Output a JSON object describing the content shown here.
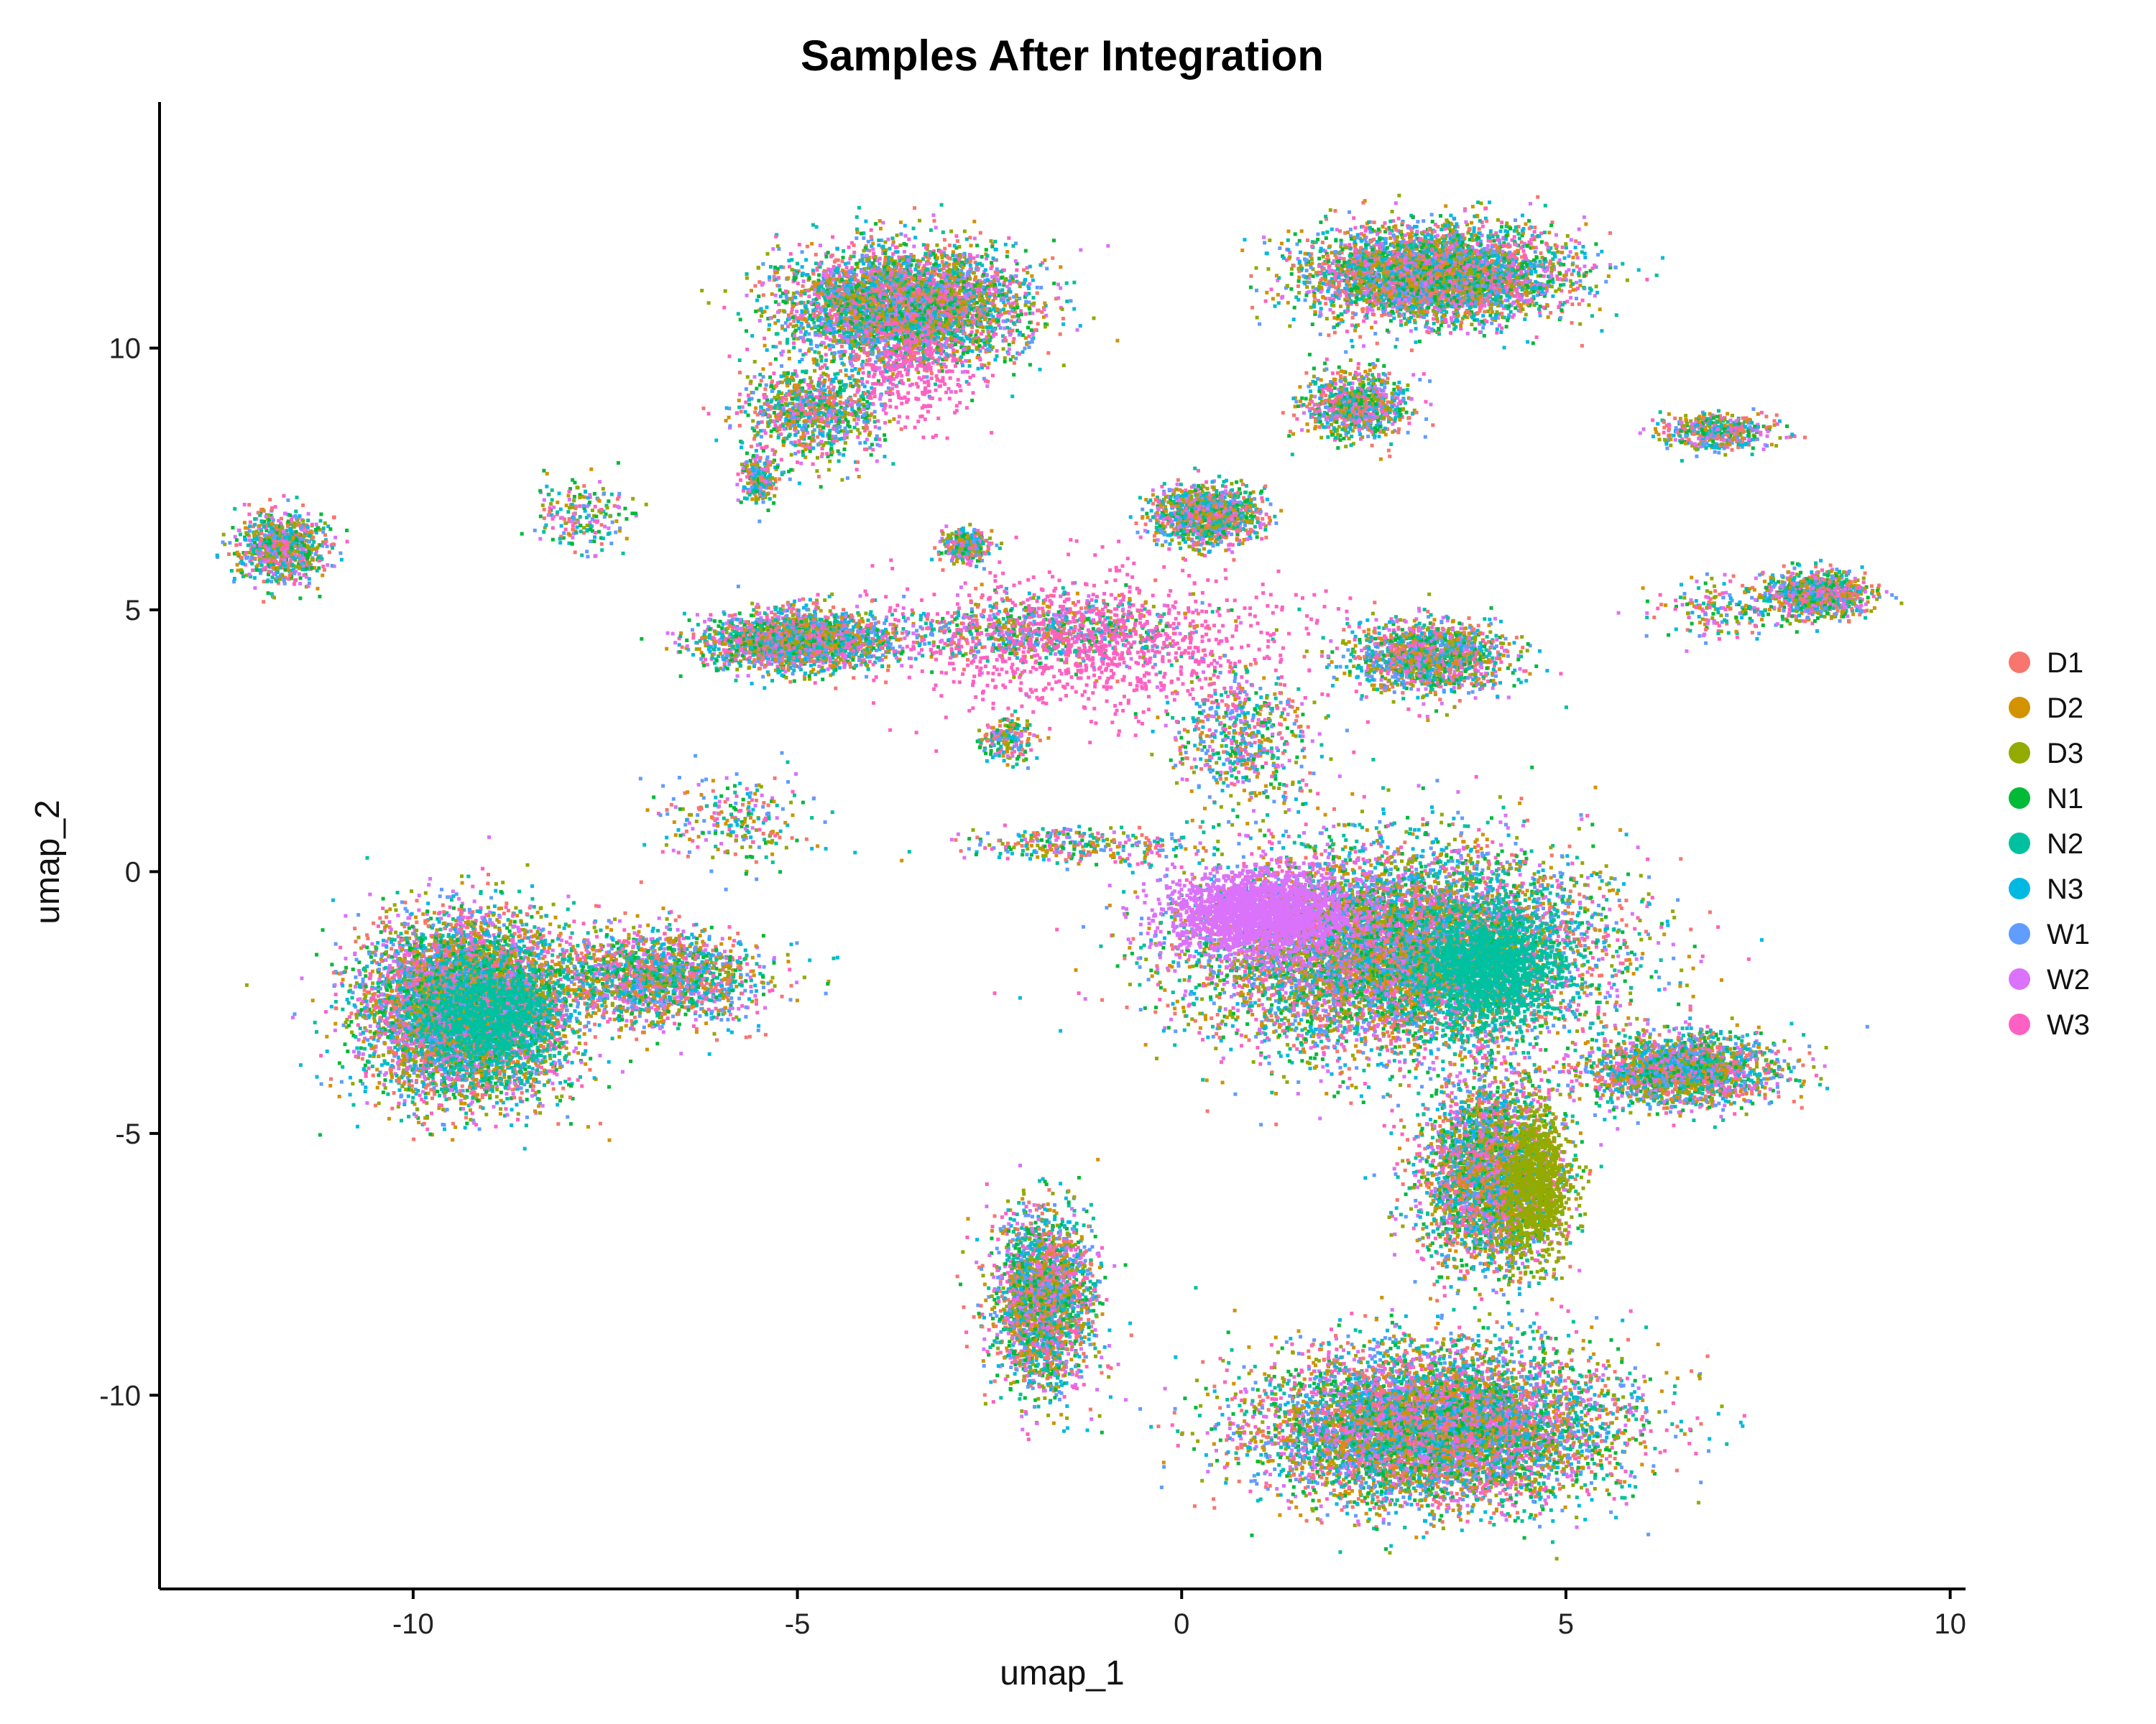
{
  "chart_data": {
    "type": "scatter",
    "title": "Samples After Integration",
    "xlabel": "umap_1",
    "ylabel": "umap_2",
    "xlim": [
      -13.3,
      10.2
    ],
    "ylim": [
      -13.7,
      14.7
    ],
    "xticks": [
      -10,
      -5,
      0,
      5,
      10
    ],
    "xtick_labels": [
      "-10",
      "-5",
      "0",
      "5",
      "10"
    ],
    "yticks": [
      -10,
      -5,
      0,
      5,
      10
    ],
    "ytick_labels": [
      "-10",
      "-5",
      "0",
      "5",
      "10"
    ],
    "grid": false,
    "legend_position": "right",
    "series": [
      {
        "name": "D1",
        "color": "#F8766D"
      },
      {
        "name": "D2",
        "color": "#D39200"
      },
      {
        "name": "D3",
        "color": "#93AA00"
      },
      {
        "name": "N1",
        "color": "#00BA38"
      },
      {
        "name": "N2",
        "color": "#00C19F"
      },
      {
        "name": "N3",
        "color": "#00B9E3"
      },
      {
        "name": "W1",
        "color": "#619CFF"
      },
      {
        "name": "W2",
        "color": "#DB72FB"
      },
      {
        "name": "W3",
        "color": "#FF61C3"
      }
    ],
    "clusters": [
      {
        "id": "large-center",
        "x": 2.8,
        "y": -1.5,
        "sx": 2.3,
        "sy": 1.7,
        "n": 9000
      },
      {
        "id": "lower-stalk",
        "x": 4.0,
        "y": -5.8,
        "sx": 0.8,
        "sy": 1.6,
        "n": 3500
      },
      {
        "id": "bottom-blob",
        "x": 3.3,
        "y": -10.6,
        "sx": 2.0,
        "sy": 1.3,
        "n": 8000
      },
      {
        "id": "lower-left-mass",
        "x": -1.8,
        "y": -8.2,
        "sx": 0.6,
        "sy": 1.5,
        "n": 2500
      },
      {
        "id": "right-arm",
        "x": 6.5,
        "y": -3.8,
        "sx": 1.1,
        "sy": 0.6,
        "n": 2200
      },
      {
        "id": "left-blob",
        "x": -9.3,
        "y": -2.6,
        "sx": 1.2,
        "sy": 1.5,
        "n": 7000
      },
      {
        "id": "left-tail",
        "x": -6.8,
        "y": -2.0,
        "sx": 1.2,
        "sy": 0.8,
        "n": 1800
      },
      {
        "id": "top-center",
        "x": -3.6,
        "y": 10.8,
        "sx": 1.4,
        "sy": 1.0,
        "n": 4500
      },
      {
        "id": "top-center-lower",
        "x": -4.8,
        "y": 8.8,
        "sx": 0.8,
        "sy": 0.8,
        "n": 1000
      },
      {
        "id": "top-right",
        "x": 3.3,
        "y": 11.4,
        "sx": 1.5,
        "sy": 0.8,
        "n": 4500
      },
      {
        "id": "top-right-lower",
        "x": 2.3,
        "y": 8.9,
        "sx": 0.6,
        "sy": 0.6,
        "n": 900
      },
      {
        "id": "top-right-arm",
        "x": 7.0,
        "y": 8.4,
        "sx": 0.7,
        "sy": 0.3,
        "n": 500
      },
      {
        "id": "far-left",
        "x": -11.7,
        "y": 6.2,
        "sx": 0.5,
        "sy": 0.6,
        "n": 900
      },
      {
        "id": "far-left-arm",
        "x": -7.8,
        "y": 6.8,
        "sx": 0.6,
        "sy": 0.6,
        "n": 200
      },
      {
        "id": "mid-left",
        "x": -5.0,
        "y": 4.4,
        "sx": 1.1,
        "sy": 0.5,
        "n": 2200
      },
      {
        "id": "center-small",
        "x": 0.3,
        "y": 6.8,
        "sx": 0.6,
        "sy": 0.5,
        "n": 1300
      },
      {
        "id": "center-right",
        "x": 3.2,
        "y": 4.1,
        "sx": 0.9,
        "sy": 0.6,
        "n": 1500
      },
      {
        "id": "far-right",
        "x": 8.3,
        "y": 5.3,
        "sx": 0.6,
        "sy": 0.4,
        "n": 900
      },
      {
        "id": "far-right-arm",
        "x": 7.0,
        "y": 5.0,
        "sx": 0.8,
        "sy": 0.5,
        "n": 200
      },
      {
        "id": "small-center-left",
        "x": -2.8,
        "y": 6.2,
        "sx": 0.3,
        "sy": 0.3,
        "n": 300
      },
      {
        "id": "upper-left-small",
        "x": -5.5,
        "y": 7.5,
        "sx": 0.2,
        "sy": 0.4,
        "n": 250
      },
      {
        "id": "mid-strand",
        "x": -1.8,
        "y": 4.6,
        "sx": 1.8,
        "sy": 0.6,
        "n": 900
      },
      {
        "id": "lower-strand",
        "x": -1.3,
        "y": 0.5,
        "sx": 1.4,
        "sy": 0.3,
        "n": 300
      },
      {
        "id": "center-stem",
        "x": 0.8,
        "y": 2.5,
        "sx": 0.8,
        "sy": 1.2,
        "n": 600
      },
      {
        "id": "small-lower-center",
        "x": -2.3,
        "y": 2.5,
        "sx": 0.3,
        "sy": 0.4,
        "n": 200
      },
      {
        "id": "left-faint-strands",
        "x": -5.8,
        "y": 1.0,
        "sx": 0.9,
        "sy": 0.8,
        "n": 250
      },
      {
        "id": "w3-pink-spread",
        "x": -1.0,
        "y": 4.3,
        "sx": 2.4,
        "sy": 1.3,
        "n": 900,
        "series": "W3"
      },
      {
        "id": "w2-center-left",
        "x": 1.0,
        "y": -0.8,
        "sx": 1.1,
        "sy": 0.7,
        "n": 2000,
        "series": "W2"
      },
      {
        "id": "n2-center-right",
        "x": 4.0,
        "y": -1.8,
        "sx": 0.8,
        "sy": 1.0,
        "n": 1600,
        "series": "N2"
      },
      {
        "id": "d3-stalk-right",
        "x": 4.6,
        "y": -6.0,
        "sx": 0.4,
        "sy": 1.2,
        "n": 900,
        "series": "D3"
      },
      {
        "id": "w3-top-center",
        "x": -3.5,
        "y": 9.5,
        "sx": 0.6,
        "sy": 0.9,
        "n": 250,
        "series": "W3"
      },
      {
        "id": "n2-left-core",
        "x": -9.0,
        "y": -2.8,
        "sx": 0.8,
        "sy": 0.9,
        "n": 900,
        "series": "N2"
      }
    ]
  }
}
